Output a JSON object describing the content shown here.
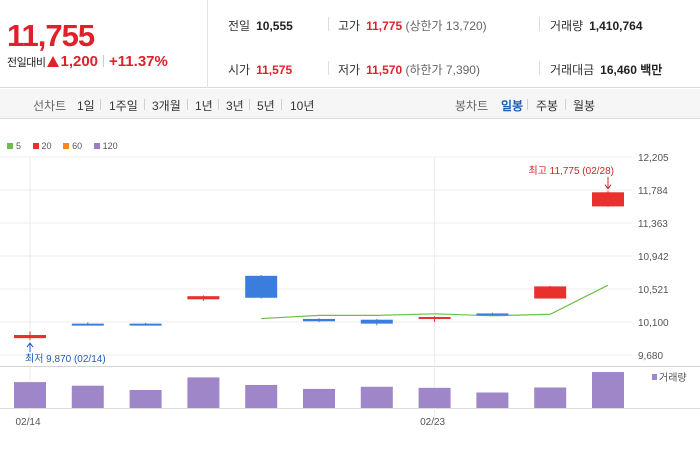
{
  "header": {
    "price": "11,755",
    "change_label": "전일대비",
    "change_amount": "1,200",
    "change_rate": "+11.37%",
    "stats": {
      "prev_close": {
        "label": "전일",
        "value": "10,555"
      },
      "high": {
        "label": "고가",
        "value": "11,775",
        "sub": "(상한가 13,720)"
      },
      "volume": {
        "label": "거래량",
        "value": "1,410,764"
      },
      "open": {
        "label": "시가",
        "value": "11,575"
      },
      "low": {
        "label": "저가",
        "value": "11,570",
        "sub": "(하한가 7,390)"
      },
      "amount": {
        "label": "거래대금",
        "value": "16,460",
        "unit": "백만"
      }
    }
  },
  "period_bar": {
    "line_chart_label": "선차트",
    "line_periods": [
      "1일",
      "1주일",
      "3개월",
      "1년",
      "3년",
      "5년",
      "10년"
    ],
    "candle_chart_label": "봉차트",
    "candle_periods": [
      "일봉",
      "주봉",
      "월봉"
    ],
    "active_candle_period": "일봉"
  },
  "colors": {
    "up": "#e8312f",
    "down": "#3b7ddd",
    "ma5": "#6cc04a",
    "ma20": "#e8312f",
    "ma60": "#f08c1c",
    "ma120": "#9a7cc8",
    "volume": "#9e86c8"
  },
  "chart_data": {
    "type": "candlestick",
    "legend": [
      "5",
      "20",
      "60",
      "120"
    ],
    "y_ticks": [
      "12,205",
      "11,784",
      "11,363",
      "10,942",
      "10,521",
      "10,100",
      "9,680"
    ],
    "ylim": [
      9680,
      12205
    ],
    "x_labels": [
      {
        "index": 0,
        "text": "02/14"
      },
      {
        "index": 7,
        "text": "02/23"
      }
    ],
    "candles": [
      {
        "open": 9895,
        "high": 9980,
        "low": 9870,
        "close": 9935,
        "dir": "up"
      },
      {
        "open": 10080,
        "high": 10095,
        "low": 10055,
        "close": 10060,
        "dir": "down"
      },
      {
        "open": 10080,
        "high": 10090,
        "low": 10060,
        "close": 10065,
        "dir": "down"
      },
      {
        "open": 10390,
        "high": 10440,
        "low": 10370,
        "close": 10430,
        "dir": "up"
      },
      {
        "open": 10690,
        "high": 10700,
        "low": 10400,
        "close": 10410,
        "dir": "down"
      },
      {
        "open": 10140,
        "high": 10150,
        "low": 10100,
        "close": 10110,
        "dir": "down"
      },
      {
        "open": 10130,
        "high": 10140,
        "low": 10060,
        "close": 10080,
        "dir": "down"
      },
      {
        "open": 10150,
        "high": 10175,
        "low": 10100,
        "close": 10165,
        "dir": "up"
      },
      {
        "open": 10210,
        "high": 10220,
        "low": 10180,
        "close": 10190,
        "dir": "down"
      },
      {
        "open": 10400,
        "high": 10560,
        "low": 10400,
        "close": 10555,
        "dir": "up"
      },
      {
        "open": 11575,
        "high": 11775,
        "low": 11570,
        "close": 11755,
        "dir": "up"
      }
    ],
    "ma5": [
      null,
      null,
      null,
      null,
      10145,
      10185,
      10185,
      10205,
      10180,
      10200,
      10570
    ],
    "volume": [
      0.72,
      0.62,
      0.5,
      0.85,
      0.64,
      0.53,
      0.59,
      0.56,
      0.43,
      0.57,
      1.0
    ],
    "volume_label": "거래량",
    "annotations": {
      "high": "최고 11,775 (02/28)",
      "low": "최저 9,870 (02/14)"
    }
  }
}
